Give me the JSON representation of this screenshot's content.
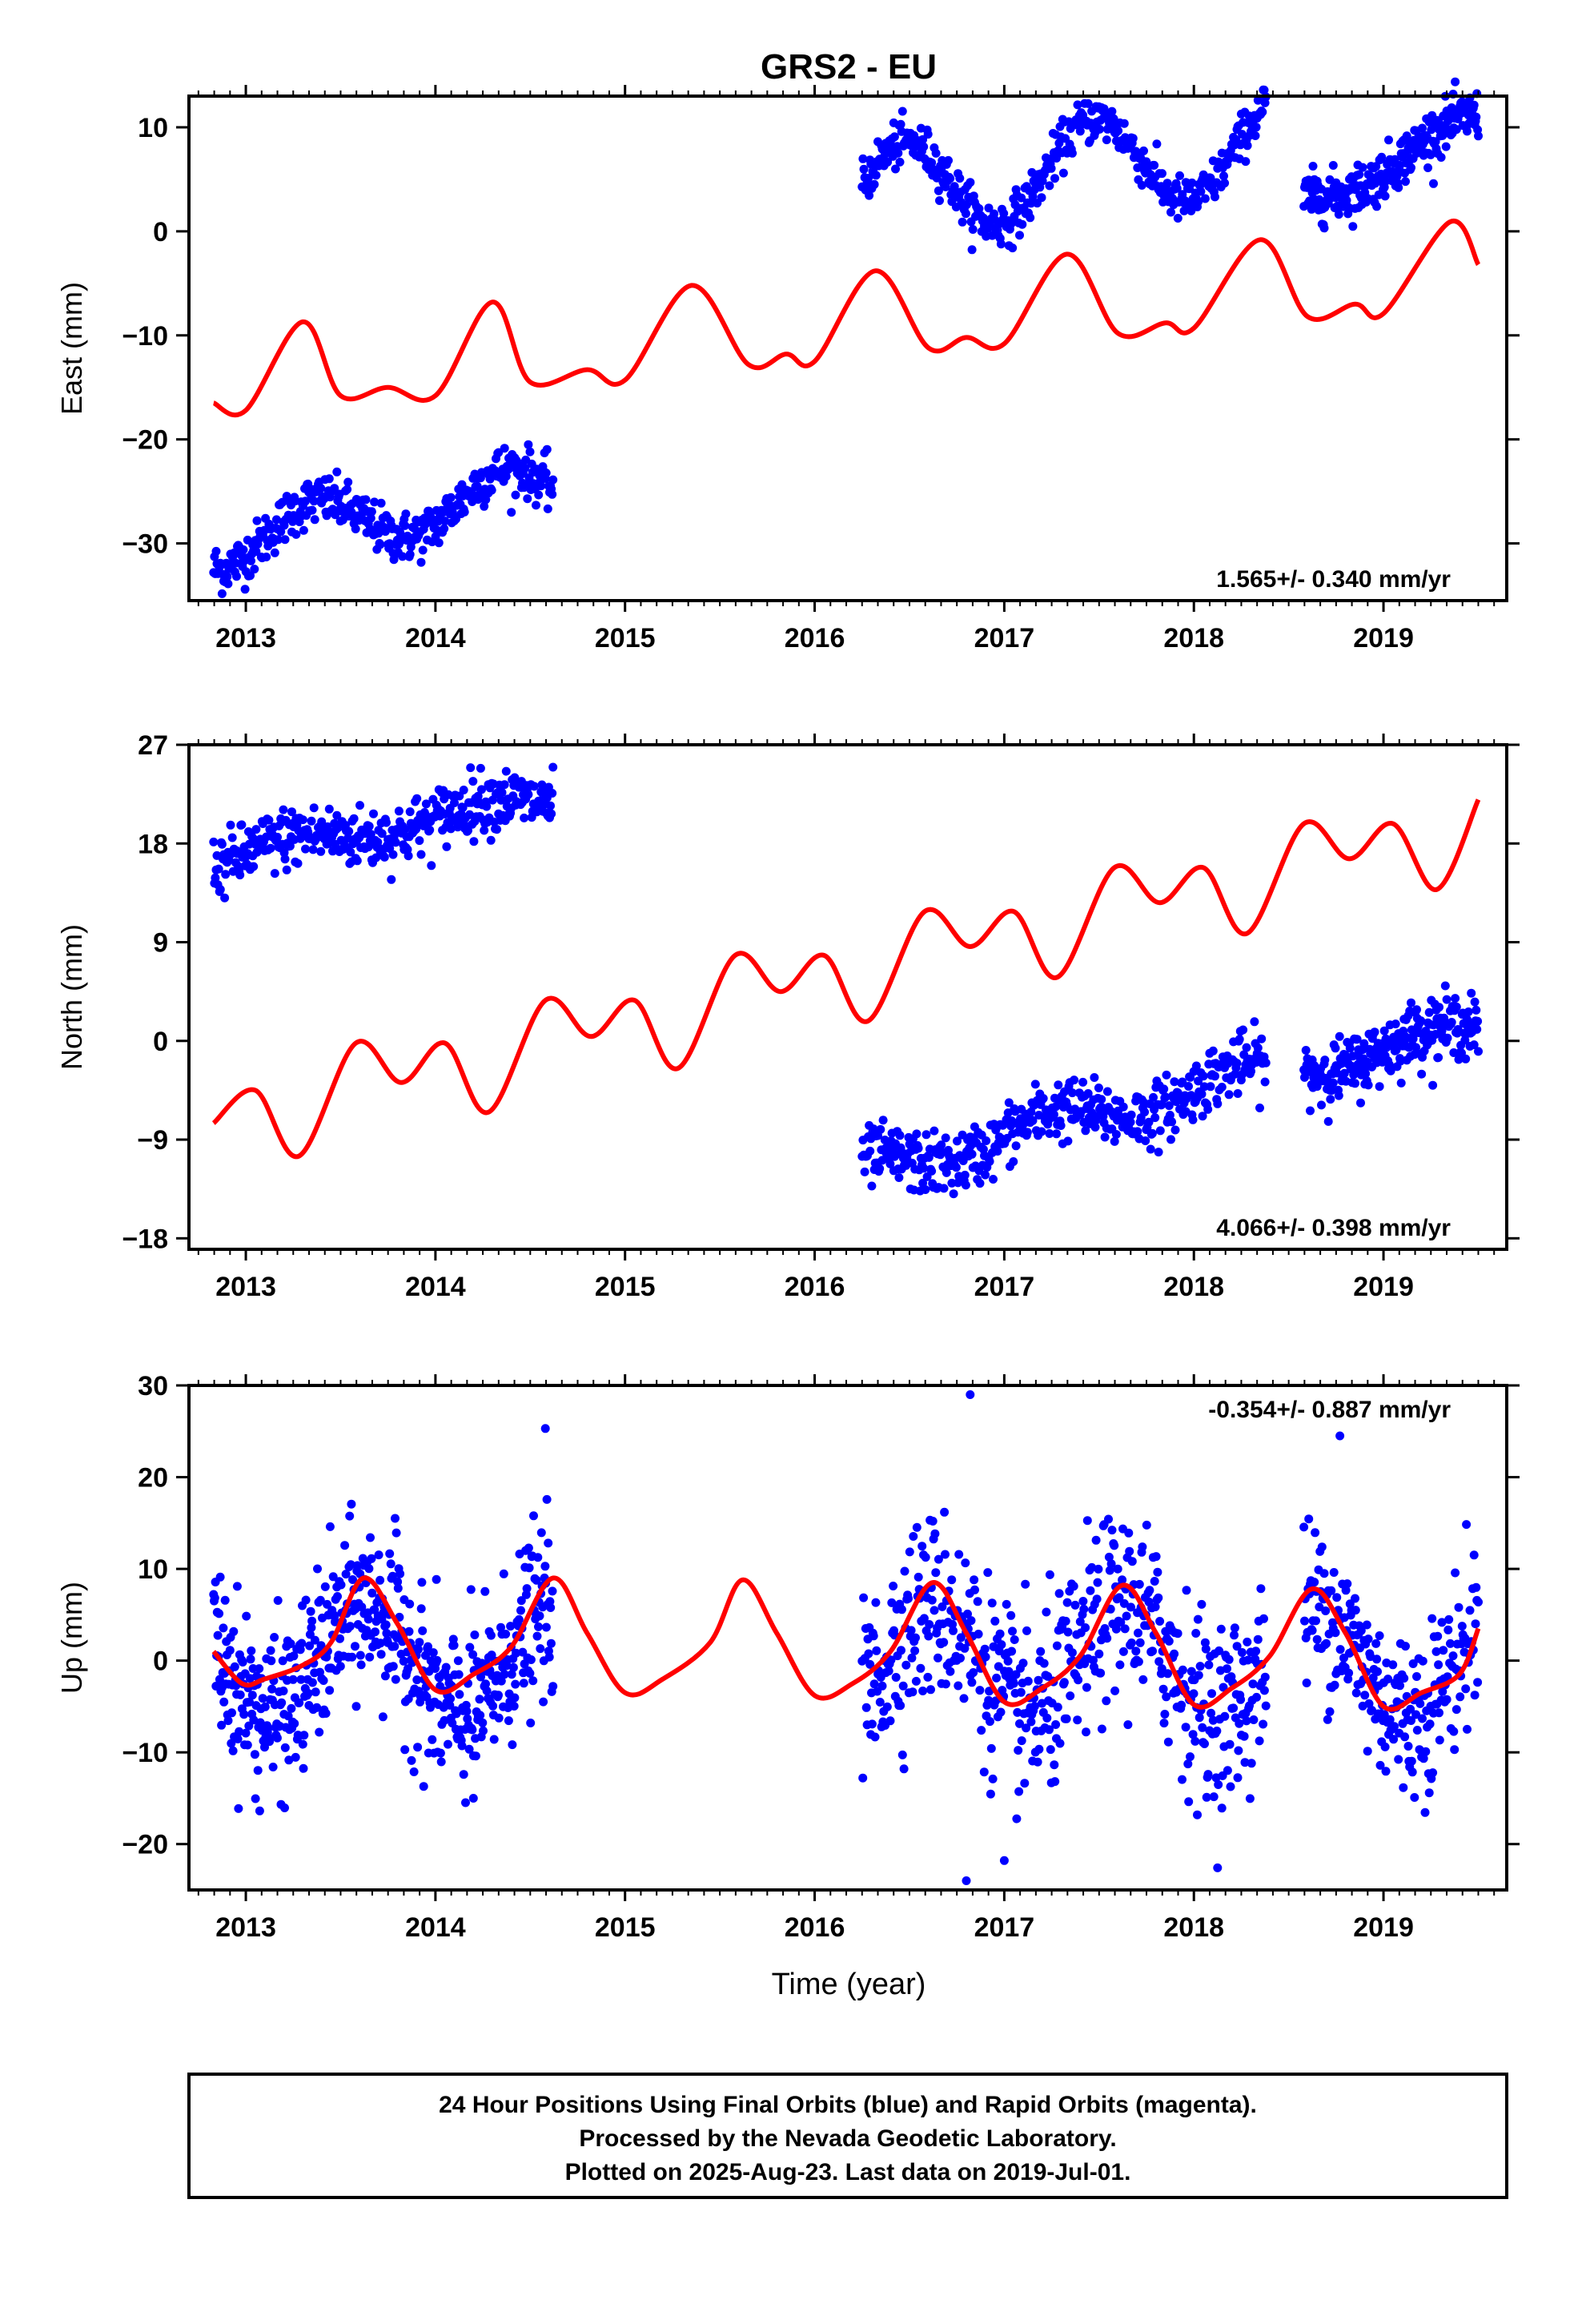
{
  "title": "GRS2 - EU",
  "colors": {
    "data": "#0000ff",
    "model": "#ff0000",
    "frame": "#000000",
    "background": "#ffffff"
  },
  "xlabel": "Time (year)",
  "footer": [
    "24 Hour Positions Using Final Orbits (blue) and Rapid Orbits (magenta).",
    "Processed by the Nevada Geodetic Laboratory.",
    "Plotted on 2025-Aug-23. Last data on 2019-Jul-01."
  ],
  "chart_data": [
    {
      "type": "scatter",
      "panel": "east",
      "ylabel": "East (mm)",
      "rate": "1.565+/- 0.340 mm/yr",
      "xlim": [
        2012.7,
        2019.65
      ],
      "ylim": [
        -35.5,
        13
      ],
      "xticks": [
        2013,
        2014,
        2015,
        2016,
        2017,
        2018,
        2019
      ],
      "yticks": [
        10,
        0,
        -10,
        -20,
        -30
      ],
      "ytick_labels": [
        "10",
        "0",
        "−10",
        "−20",
        "−30"
      ],
      "grid": false,
      "segments": [
        {
          "x0": 2012.83,
          "x1": 2014.62,
          "offset": -30,
          "rate": 3.0,
          "amp": 2.5,
          "phase": 0.12,
          "noise": 1.2,
          "n": 400
        },
        {
          "x0": 2016.25,
          "x1": 2018.38,
          "offset": 3.5,
          "rate": 2.3,
          "amp": 4.5,
          "phase": 0.22,
          "noise": 1.1,
          "n": 460
        },
        {
          "x0": 2018.58,
          "x1": 2019.5,
          "offset": 3,
          "rate": 8.0,
          "amp": 1.2,
          "phase": 0.12,
          "noise": 1.2,
          "n": 250
        }
      ],
      "model": {
        "x": [
          2012.83,
          2013.0,
          2013.3,
          2013.5,
          2013.75,
          2014.0,
          2014.3,
          2014.5,
          2014.8,
          2015.0,
          2015.35,
          2015.65,
          2015.85,
          2016.0,
          2016.32,
          2016.6,
          2016.8,
          2017.0,
          2017.33,
          2017.6,
          2017.85,
          2018.0,
          2018.35,
          2018.6,
          2018.85,
          2019.0,
          2019.35,
          2019.5
        ],
        "y": [
          -16.5,
          -17.2,
          -8.7,
          -15.8,
          -15.0,
          -15.8,
          -6.8,
          -14.5,
          -13.3,
          -14.3,
          -5.2,
          -12.8,
          -11.8,
          -12.5,
          -3.8,
          -11.2,
          -10.2,
          -10.8,
          -2.2,
          -9.8,
          -8.8,
          -9.3,
          -0.8,
          -8.2,
          -7.0,
          -7.9,
          0.9,
          -3.2
        ]
      }
    },
    {
      "type": "scatter",
      "panel": "north",
      "ylabel": "North (mm)",
      "rate": "4.066+/- 0.398 mm/yr",
      "xlim": [
        2012.7,
        2019.65
      ],
      "ylim": [
        -19,
        27
      ],
      "xticks": [
        2013,
        2014,
        2015,
        2016,
        2017,
        2018,
        2019
      ],
      "yticks": [
        27,
        18,
        9,
        0,
        -9,
        -18
      ],
      "ytick_labels": [
        "27",
        "18",
        "9",
        "0",
        "−9",
        "−18"
      ],
      "grid": false,
      "segments": [
        {
          "x0": 2012.83,
          "x1": 2014.62,
          "offset": 16.5,
          "rate": 3.2,
          "amp": 0.8,
          "phase": 0.0,
          "noise": 1.4,
          "n": 400
        },
        {
          "x0": 2016.25,
          "x1": 2018.38,
          "offset": -12,
          "rate": 4.3,
          "amp": 1.3,
          "phase": 0.0,
          "noise": 1.4,
          "n": 460
        },
        {
          "x0": 2018.58,
          "x1": 2019.5,
          "offset": -2.5,
          "rate": 4.0,
          "amp": 1.0,
          "phase": 0.0,
          "noise": 1.4,
          "n": 250
        }
      ],
      "model": {
        "x": [
          2012.83,
          2013.05,
          2013.28,
          2013.58,
          2013.82,
          2014.05,
          2014.28,
          2014.58,
          2014.82,
          2015.05,
          2015.28,
          2015.58,
          2015.82,
          2016.05,
          2016.28,
          2016.58,
          2016.82,
          2017.05,
          2017.28,
          2017.58,
          2017.82,
          2018.05,
          2018.28,
          2018.58,
          2018.82,
          2019.05,
          2019.28,
          2019.5
        ],
        "y": [
          -7.5,
          -4.5,
          -10.5,
          -0.2,
          -3.8,
          -0.2,
          -6.5,
          3.7,
          0.4,
          3.7,
          -2.5,
          7.8,
          4.5,
          7.8,
          1.8,
          11.8,
          8.6,
          11.8,
          5.8,
          15.8,
          12.6,
          15.8,
          9.8,
          19.8,
          16.6,
          19.8,
          13.8,
          22.0
        ]
      }
    },
    {
      "type": "scatter",
      "panel": "up",
      "ylabel": "Up (mm)",
      "rate": "-0.354+/- 0.887 mm/yr",
      "xlim": [
        2012.7,
        2019.65
      ],
      "ylim": [
        -25,
        30
      ],
      "xticks": [
        2013,
        2014,
        2015,
        2016,
        2017,
        2018,
        2019
      ],
      "yticks": [
        30,
        20,
        10,
        0,
        -10,
        -20
      ],
      "ytick_labels": [
        "30",
        "20",
        "10",
        "0",
        "−10",
        "−20"
      ],
      "grid": false,
      "segments": [
        {
          "x0": 2012.83,
          "x1": 2014.62,
          "offset": 0,
          "rate": 0,
          "amp": 6.0,
          "phase": 0.38,
          "noise": 4.5,
          "n": 560
        },
        {
          "x0": 2016.25,
          "x1": 2018.38,
          "offset": 0,
          "rate": 0,
          "amp": 6.0,
          "phase": 0.38,
          "noise": 5.0,
          "n": 560
        },
        {
          "x0": 2018.58,
          "x1": 2019.5,
          "offset": 0,
          "rate": 0,
          "amp": 6.0,
          "phase": 0.38,
          "noise": 4.5,
          "n": 250
        }
      ],
      "model": {
        "x": [
          2012.83,
          2012.98,
          2013.1,
          2013.3,
          2013.45,
          2013.62,
          2013.8,
          2014.0,
          2014.2,
          2014.4,
          2014.62,
          2014.8,
          2015.0,
          2015.2,
          2015.45,
          2015.62,
          2015.8,
          2016.0,
          2016.2,
          2016.4,
          2016.62,
          2016.8,
          2017.0,
          2017.2,
          2017.4,
          2017.62,
          2017.8,
          2018.0,
          2018.2,
          2018.4,
          2018.62,
          2018.8,
          2019.0,
          2019.2,
          2019.4,
          2019.5
        ],
        "y": [
          1.0,
          -2.5,
          -2.0,
          -0.5,
          2.0,
          9.0,
          4.0,
          -3.2,
          -1.5,
          1.5,
          9.0,
          3.0,
          -3.5,
          -2.0,
          2.0,
          8.8,
          3.0,
          -3.8,
          -2.5,
          1.0,
          8.5,
          3.0,
          -4.5,
          -3.0,
          0.5,
          8.2,
          3.0,
          -4.8,
          -3.0,
          0.5,
          7.8,
          3.0,
          -5.0,
          -3.5,
          -1.5,
          3.5
        ]
      },
      "outliers": [
        [
          2016.82,
          29.0
        ],
        [
          2018.77,
          24.5
        ],
        [
          2014.58,
          25.3
        ],
        [
          2016.8,
          -24.0
        ],
        [
          2017.0,
          -21.8
        ],
        [
          2014.2,
          -15.0
        ]
      ]
    }
  ]
}
